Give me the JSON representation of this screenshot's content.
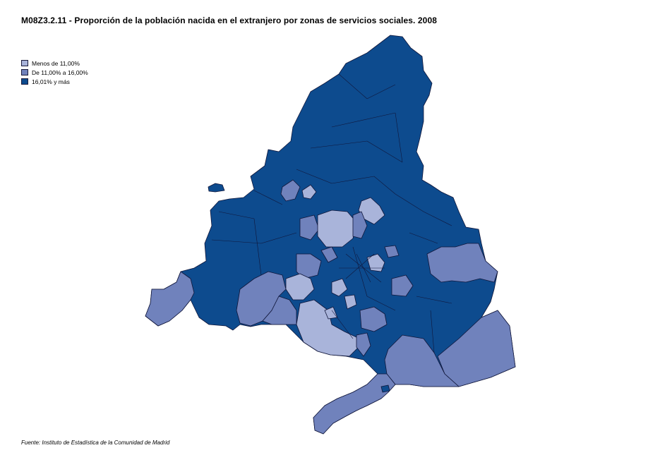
{
  "title": "M08Z3.2.11 - Proporción de la población nacida en el extranjero por zonas de servicios sociales. 2008",
  "legend": {
    "items": [
      {
        "label": "Menos de 11,00%",
        "color": "#a9b4da"
      },
      {
        "label": "De 11,00% a 16,00%",
        "color": "#7082bc"
      },
      {
        "label": "16,01% y más",
        "color": "#0d4b8e"
      }
    ]
  },
  "source": "Fuente: Instituto de Estadística de la Comunidad de Madrid",
  "map": {
    "region": "Comunidad de Madrid",
    "color_light": "#a9b4da",
    "color_medium": "#7082bc",
    "color_dark": "#0d4b8e",
    "border_color": "#10163a"
  }
}
